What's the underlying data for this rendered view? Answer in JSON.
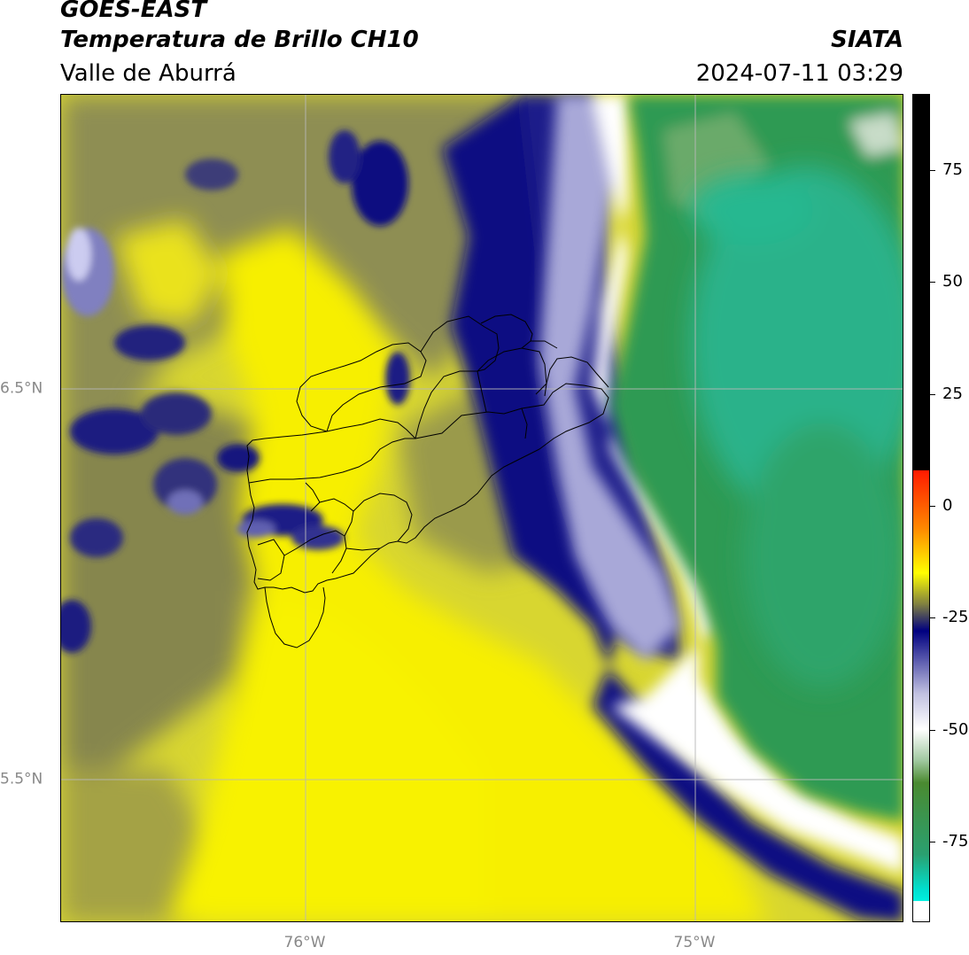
{
  "header": {
    "product": "GOES-EAST",
    "channel": "Temperatura de Brillo CH10",
    "agency": "SIATA",
    "region": "Valle de Aburrá",
    "datetime": "2024-07-11 03:29"
  },
  "map": {
    "lat_labels": [
      "6.5°N",
      "5.5°N"
    ],
    "lon_labels": [
      "76°W",
      "75°W"
    ],
    "colors": {
      "warm_yellow": "#f5f000",
      "olive": "#a8a846",
      "navy": "#0a0a80",
      "lavender": "#c8c8e8",
      "white": "#ffffff",
      "green": "#2e9a50",
      "teal": "#27b58a"
    }
  },
  "colorbar": {
    "ticks": [
      "75",
      "50",
      "25",
      "0",
      "-25",
      "-50",
      "-75"
    ],
    "tick_values": [
      75,
      50,
      25,
      0,
      -25,
      -50,
      -75
    ],
    "range": [
      -93,
      92
    ],
    "stops": [
      {
        "v": 92,
        "color": "#000000"
      },
      {
        "v": 8,
        "color": "#000000"
      },
      {
        "v": 7.9,
        "color": "#ff1a00"
      },
      {
        "v": -5,
        "color": "#ff8800"
      },
      {
        "v": -15,
        "color": "#ffff00"
      },
      {
        "v": -22,
        "color": "#808040"
      },
      {
        "v": -28,
        "color": "#000080"
      },
      {
        "v": -42,
        "color": "#c0c0e0"
      },
      {
        "v": -50,
        "color": "#ffffff"
      },
      {
        "v": -57,
        "color": "#a0c8a0"
      },
      {
        "v": -62,
        "color": "#4a8a30"
      },
      {
        "v": -78,
        "color": "#2aa070"
      },
      {
        "v": -86,
        "color": "#00e0d0"
      },
      {
        "v": -88.4,
        "color": "#00f0e0"
      },
      {
        "v": -88.5,
        "color": "#ffffff"
      },
      {
        "v": -93,
        "color": "#ffffff"
      }
    ]
  }
}
